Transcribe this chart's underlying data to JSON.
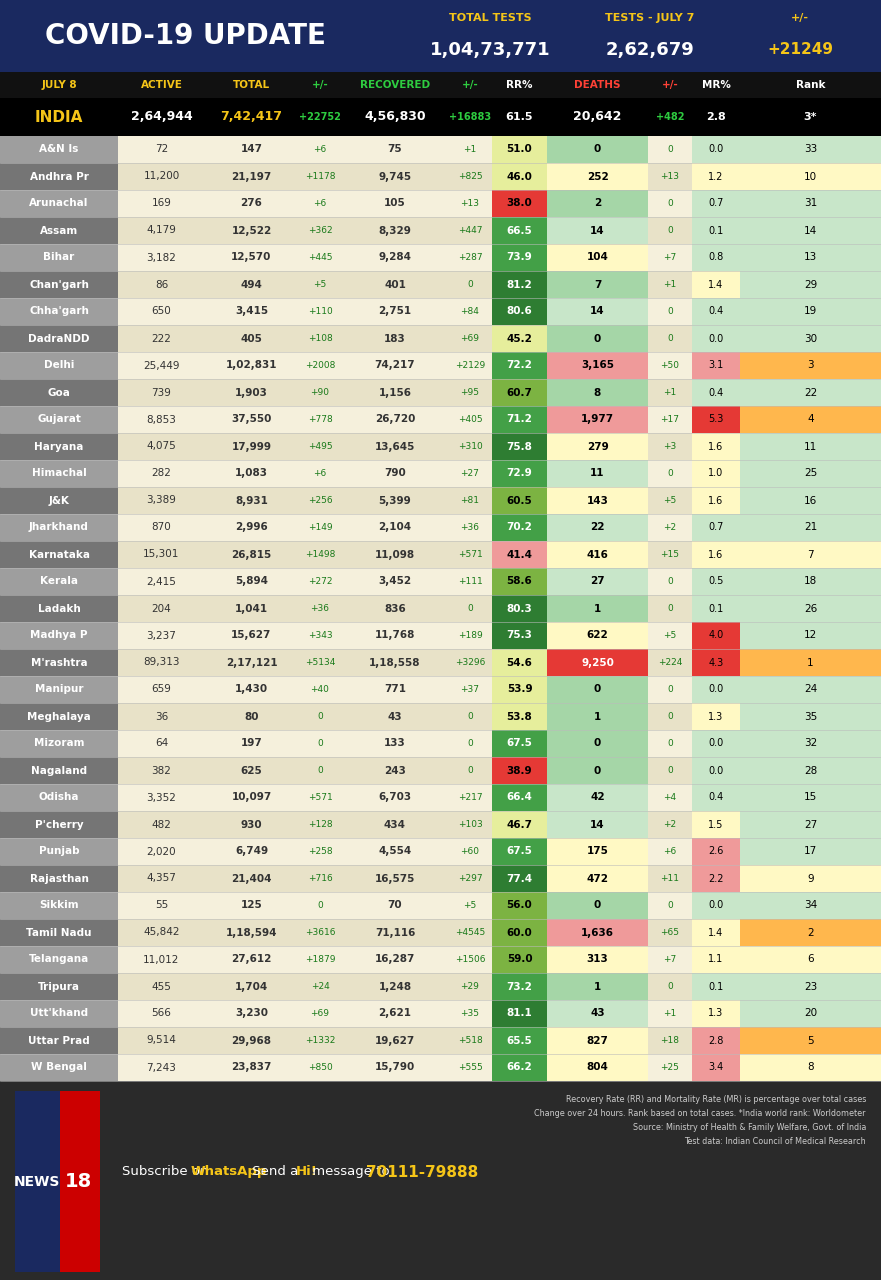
{
  "title": "COVID-19 UPDATE",
  "total_tests_label": "TOTAL TESTS",
  "total_tests_value": "1,04,73,771",
  "tests_july7_label": "TESTS - JULY 7",
  "tests_july7_value": "2,62,679",
  "tests_change": "+21249",
  "col_headers": [
    "JULY 8",
    "ACTIVE",
    "TOTAL",
    "+/-",
    "RECOVERED",
    "+/-",
    "RR%",
    "DEATHS",
    "+/-",
    "MR%",
    "Rank"
  ],
  "india_row": [
    "INDIA",
    "2,64,944",
    "7,42,417",
    "+22752",
    "4,56,830",
    "+16883",
    "61.5",
    "20,642",
    "+482",
    "2.8",
    "3*"
  ],
  "rows": [
    [
      "A&N Is",
      "72",
      "147",
      "+6",
      "75",
      "+1",
      "51.0",
      "0",
      "0",
      "0.0",
      "33"
    ],
    [
      "Andhra Pr",
      "11,200",
      "21,197",
      "+1178",
      "9,745",
      "+825",
      "46.0",
      "252",
      "+13",
      "1.2",
      "10"
    ],
    [
      "Arunachal",
      "169",
      "276",
      "+6",
      "105",
      "+13",
      "38.0",
      "2",
      "0",
      "0.7",
      "31"
    ],
    [
      "Assam",
      "4,179",
      "12,522",
      "+362",
      "8,329",
      "+447",
      "66.5",
      "14",
      "0",
      "0.1",
      "14"
    ],
    [
      "Bihar",
      "3,182",
      "12,570",
      "+445",
      "9,284",
      "+287",
      "73.9",
      "104",
      "+7",
      "0.8",
      "13"
    ],
    [
      "Chan'garh",
      "86",
      "494",
      "+5",
      "401",
      "0",
      "81.2",
      "7",
      "+1",
      "1.4",
      "29"
    ],
    [
      "Chha'garh",
      "650",
      "3,415",
      "+110",
      "2,751",
      "+84",
      "80.6",
      "14",
      "0",
      "0.4",
      "19"
    ],
    [
      "DadraNDD",
      "222",
      "405",
      "+108",
      "183",
      "+69",
      "45.2",
      "0",
      "0",
      "0.0",
      "30"
    ],
    [
      "Delhi",
      "25,449",
      "1,02,831",
      "+2008",
      "74,217",
      "+2129",
      "72.2",
      "3,165",
      "+50",
      "3.1",
      "3"
    ],
    [
      "Goa",
      "739",
      "1,903",
      "+90",
      "1,156",
      "+95",
      "60.7",
      "8",
      "+1",
      "0.4",
      "22"
    ],
    [
      "Gujarat",
      "8,853",
      "37,550",
      "+778",
      "26,720",
      "+405",
      "71.2",
      "1,977",
      "+17",
      "5.3",
      "4"
    ],
    [
      "Haryana",
      "4,075",
      "17,999",
      "+495",
      "13,645",
      "+310",
      "75.8",
      "279",
      "+3",
      "1.6",
      "11"
    ],
    [
      "Himachal",
      "282",
      "1,083",
      "+6",
      "790",
      "+27",
      "72.9",
      "11",
      "0",
      "1.0",
      "25"
    ],
    [
      "J&K",
      "3,389",
      "8,931",
      "+256",
      "5,399",
      "+81",
      "60.5",
      "143",
      "+5",
      "1.6",
      "16"
    ],
    [
      "Jharkhand",
      "870",
      "2,996",
      "+149",
      "2,104",
      "+36",
      "70.2",
      "22",
      "+2",
      "0.7",
      "21"
    ],
    [
      "Karnataka",
      "15,301",
      "26,815",
      "+1498",
      "11,098",
      "+571",
      "41.4",
      "416",
      "+15",
      "1.6",
      "7"
    ],
    [
      "Kerala",
      "2,415",
      "5,894",
      "+272",
      "3,452",
      "+111",
      "58.6",
      "27",
      "0",
      "0.5",
      "18"
    ],
    [
      "Ladakh",
      "204",
      "1,041",
      "+36",
      "836",
      "0",
      "80.3",
      "1",
      "0",
      "0.1",
      "26"
    ],
    [
      "Madhya P",
      "3,237",
      "15,627",
      "+343",
      "11,768",
      "+189",
      "75.3",
      "622",
      "+5",
      "4.0",
      "12"
    ],
    [
      "M'rashtra",
      "89,313",
      "2,17,121",
      "+5134",
      "1,18,558",
      "+3296",
      "54.6",
      "9,250",
      "+224",
      "4.3",
      "1"
    ],
    [
      "Manipur",
      "659",
      "1,430",
      "+40",
      "771",
      "+37",
      "53.9",
      "0",
      "0",
      "0.0",
      "24"
    ],
    [
      "Meghalaya",
      "36",
      "80",
      "0",
      "43",
      "0",
      "53.8",
      "1",
      "0",
      "1.3",
      "35"
    ],
    [
      "Mizoram",
      "64",
      "197",
      "0",
      "133",
      "0",
      "67.5",
      "0",
      "0",
      "0.0",
      "32"
    ],
    [
      "Nagaland",
      "382",
      "625",
      "0",
      "243",
      "0",
      "38.9",
      "0",
      "0",
      "0.0",
      "28"
    ],
    [
      "Odisha",
      "3,352",
      "10,097",
      "+571",
      "6,703",
      "+217",
      "66.4",
      "42",
      "+4",
      "0.4",
      "15"
    ],
    [
      "P'cherry",
      "482",
      "930",
      "+128",
      "434",
      "+103",
      "46.7",
      "14",
      "+2",
      "1.5",
      "27"
    ],
    [
      "Punjab",
      "2,020",
      "6,749",
      "+258",
      "4,554",
      "+60",
      "67.5",
      "175",
      "+6",
      "2.6",
      "17"
    ],
    [
      "Rajasthan",
      "4,357",
      "21,404",
      "+716",
      "16,575",
      "+297",
      "77.4",
      "472",
      "+11",
      "2.2",
      "9"
    ],
    [
      "Sikkim",
      "55",
      "125",
      "0",
      "70",
      "+5",
      "56.0",
      "0",
      "0",
      "0.0",
      "34"
    ],
    [
      "Tamil Nadu",
      "45,842",
      "1,18,594",
      "+3616",
      "71,116",
      "+4545",
      "60.0",
      "1,636",
      "+65",
      "1.4",
      "2"
    ],
    [
      "Telangana",
      "11,012",
      "27,612",
      "+1879",
      "16,287",
      "+1506",
      "59.0",
      "313",
      "+7",
      "1.1",
      "6"
    ],
    [
      "Tripura",
      "455",
      "1,704",
      "+24",
      "1,248",
      "+29",
      "73.2",
      "1",
      "0",
      "0.1",
      "23"
    ],
    [
      "Utt'khand",
      "566",
      "3,230",
      "+69",
      "2,621",
      "+35",
      "81.1",
      "43",
      "+1",
      "1.3",
      "20"
    ],
    [
      "Uttar Prad",
      "9,514",
      "29,968",
      "+1332",
      "19,627",
      "+518",
      "65.5",
      "827",
      "+18",
      "2.8",
      "5"
    ],
    [
      "W Bengal",
      "7,243",
      "23,837",
      "+850",
      "15,790",
      "+555",
      "66.2",
      "804",
      "+25",
      "3.4",
      "8"
    ]
  ],
  "footer_notes": [
    "Recovery Rate (RR) and Mortality Rate (MR) is percentage over total cases",
    "Change over 24 hours. Rank based on total cases. *India world rank: Worldometer",
    "Source: Ministry of Health & Family Welfare, Govt. of India",
    "Test data: Indian Council of Medical Research"
  ],
  "col_header_bg": "#111111",
  "header_bg": "#1a2960",
  "india_bg": "#000000",
  "row_bg_light": "#f5f0dc",
  "row_bg_dark": "#c8c0a0",
  "state_bg_light": "#b0b0b0",
  "state_bg_dark": "#707070",
  "footer_bg": "#2a2a2a",
  "rr_green_dark": "#2e8b2e",
  "rr_green_light": "#6abf6a",
  "rr_yellow": "#e8e050",
  "rr_orange": "#e8a040",
  "rr_red": "#d94040",
  "death_red_dark": "#d94040",
  "death_pink": "#e8a0a0",
  "death_orange": "#e8c090",
  "death_yellow": "#e8e090",
  "death_green": "#90c890",
  "mr_red": "#d94040",
  "mr_orange": "#e8b080",
  "mr_yellow": "#e8e090",
  "mr_green": "#90c890",
  "rank_orange": "#e8a060",
  "rank_yellow": "#e8e090",
  "rank_green": "#90c890"
}
